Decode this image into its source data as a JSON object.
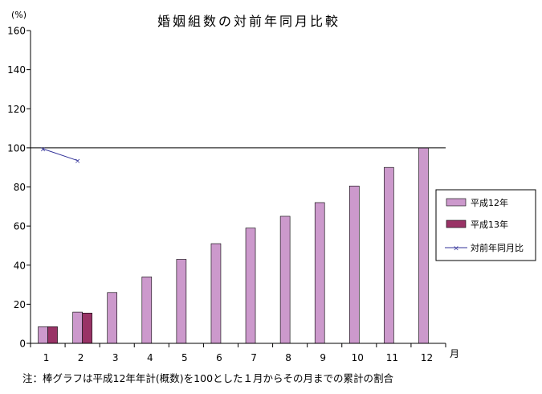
{
  "chart_data": {
    "type": "bar",
    "title": "婚姻組数の対前年同月比較",
    "y_unit_label": "(%)",
    "x_unit_label": "月",
    "categories": [
      "1",
      "2",
      "3",
      "4",
      "5",
      "6",
      "7",
      "8",
      "9",
      "10",
      "11",
      "12"
    ],
    "ylim": [
      0,
      160
    ],
    "yticks": [
      "0",
      "20",
      "40",
      "60",
      "80",
      "100",
      "120",
      "140",
      "160"
    ],
    "reference_line": 100,
    "series": [
      {
        "name": "平成12年",
        "type": "bar",
        "color": "#cc99cc",
        "values": [
          8.5,
          16,
          26,
          34,
          43,
          51,
          59,
          65,
          72,
          80.5,
          90,
          100
        ]
      },
      {
        "name": "平成13年",
        "type": "bar",
        "color": "#993366",
        "values": [
          8.5,
          15.5,
          null,
          null,
          null,
          null,
          null,
          null,
          null,
          null,
          null,
          null
        ]
      },
      {
        "name": "対前年同月比",
        "type": "line",
        "color": "#333399",
        "marker": "x",
        "values": [
          99.5,
          93.5,
          null,
          null,
          null,
          null,
          null,
          null,
          null,
          null,
          null,
          null
        ]
      }
    ],
    "legend_position": "right",
    "grid": false,
    "note": "注：棒グラフは平成12年年計(概数)を100とした１月からその月までの累計の割合"
  }
}
